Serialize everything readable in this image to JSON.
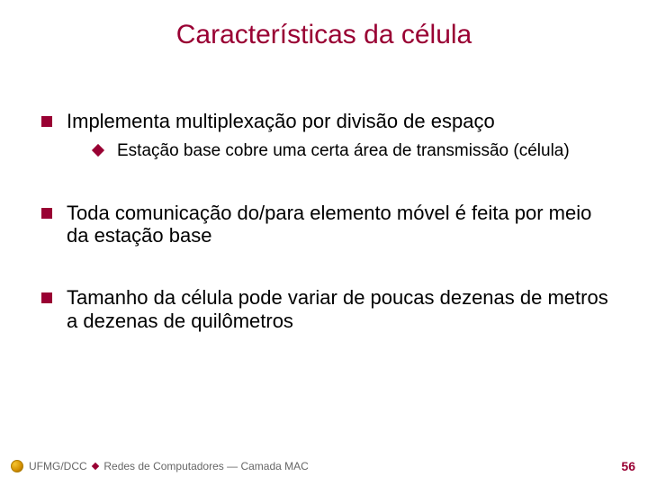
{
  "slide": {
    "title": "Características da célula",
    "title_color": "#990033",
    "title_fontsize": 30,
    "bullet_color": "#990033",
    "body_fontsize_l1": 22,
    "body_fontsize_l2": 19,
    "background_color": "#ffffff",
    "items": [
      {
        "text": "Implementa multiplexação por divisão de espaço",
        "sub": [
          {
            "text": "Estação base cobre uma certa área de transmissão (célula)"
          }
        ]
      },
      {
        "text": "Toda comunicação do/para elemento móvel é feita por meio da estação base",
        "sub": []
      },
      {
        "text": "Tamanho da célula pode variar de poucas dezenas de metros a dezenas de quilômetros",
        "sub": []
      }
    ]
  },
  "footer": {
    "org": "UFMG/DCC",
    "course": "Redes de Computadores — Camada MAC",
    "separator_color": "#990033",
    "text_color": "#666666",
    "page_number": "56",
    "page_number_color": "#990033"
  }
}
